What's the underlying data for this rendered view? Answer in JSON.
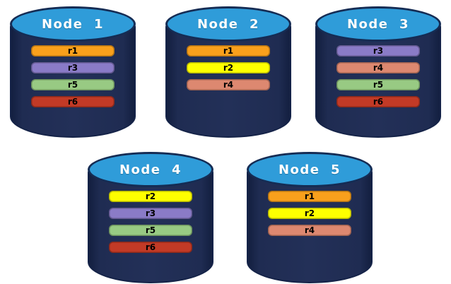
{
  "diagram": {
    "description": "Five database nodes with replica placement",
    "nodes": [
      {
        "name": "Node  1",
        "replicas": [
          "r1",
          "r3",
          "r5",
          "r6"
        ]
      },
      {
        "name": "Node  2",
        "replicas": [
          "r1",
          "r2",
          "r4"
        ]
      },
      {
        "name": "Node  3",
        "replicas": [
          "r3",
          "r4",
          "r5",
          "r6"
        ]
      },
      {
        "name": "Node  4",
        "replicas": [
          "r2",
          "r3",
          "r5",
          "r6"
        ]
      },
      {
        "name": "Node  5",
        "replicas": [
          "r1",
          "r2",
          "r4"
        ]
      }
    ],
    "replica_colors": {
      "r1": "#F9A01C",
      "r2": "#FEFF00",
      "r3": "#8A7BC7",
      "r4": "#DD8870",
      "r5": "#98CA83",
      "r6": "#C23A26"
    },
    "cylinder_colors": {
      "body_fill": "#1F2C52",
      "body_border": "#152348",
      "top_fill": "#2F9CD9",
      "top_border": "#152C54",
      "title_text": "#FFFFFF"
    }
  }
}
